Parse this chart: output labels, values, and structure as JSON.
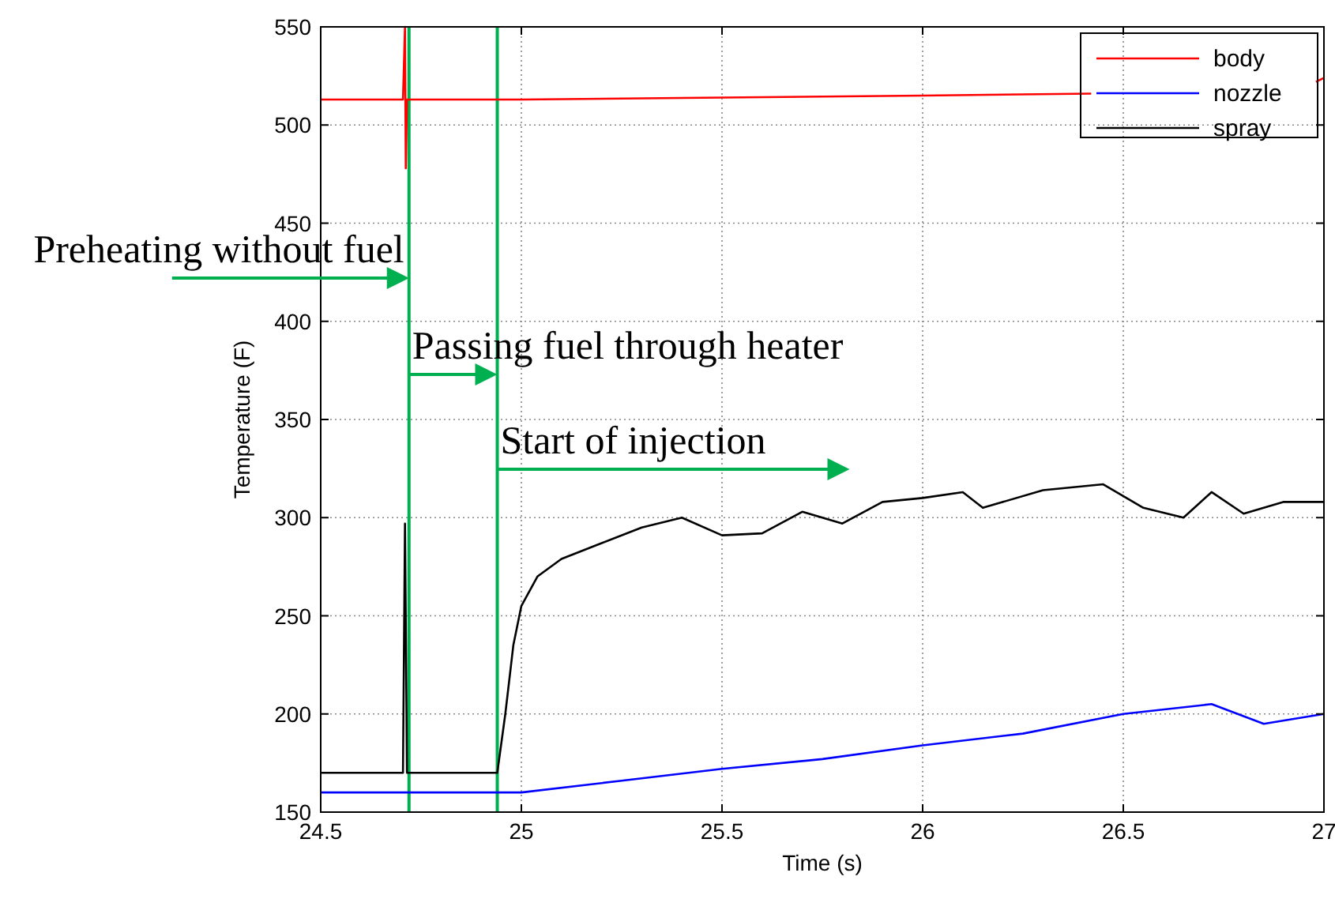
{
  "chart_data": {
    "type": "line",
    "xlabel": "Time (s)",
    "ylabel": "Temperature (F)",
    "xlim": [
      24.5,
      27
    ],
    "xticks": [
      24.5,
      25,
      25.5,
      26,
      26.5,
      27
    ],
    "ylim": [
      150,
      550
    ],
    "yticks": [
      150,
      200,
      250,
      300,
      350,
      400,
      450,
      500,
      550
    ],
    "grid": true,
    "legend": "top right",
    "line_style": "solid",
    "marker": "none",
    "series": [
      {
        "name": "body",
        "color": "#ff0000",
        "x": [
          24.5,
          24.6,
          24.705,
          24.71,
          24.712,
          24.715,
          24.8,
          25,
          25.5,
          26,
          26.42,
          26.6,
          26.98,
          27
        ],
        "values": [
          513,
          513,
          513,
          550,
          478,
          513,
          513,
          513,
          514,
          515,
          516,
          null,
          522,
          524
        ]
      },
      {
        "name": "nozzle",
        "color": "#0000ff",
        "x": [
          24.5,
          24.7,
          24.94,
          25,
          25.25,
          25.5,
          25.75,
          26,
          26.25,
          26.5,
          26.72,
          26.85,
          27
        ],
        "values": [
          160,
          160,
          160,
          160,
          166,
          172,
          177,
          184,
          190,
          200,
          205,
          195,
          200
        ]
      },
      {
        "name": "spray",
        "color": "#000000",
        "x": [
          24.5,
          24.705,
          24.71,
          24.715,
          24.94,
          24.96,
          24.98,
          25,
          25.04,
          25.1,
          25.2,
          25.3,
          25.4,
          25.5,
          25.6,
          25.7,
          25.8,
          25.9,
          26,
          26.1,
          26.15,
          26.3,
          26.45,
          26.55,
          26.65,
          26.72,
          26.8,
          26.9,
          27
        ],
        "values": [
          170,
          170,
          297,
          170,
          170,
          200,
          235,
          255,
          270,
          279,
          287,
          295,
          300,
          291,
          292,
          303,
          297,
          308,
          310,
          313,
          305,
          314,
          317,
          305,
          300,
          313,
          302,
          308,
          308
        ]
      }
    ],
    "ref_lines": [
      {
        "axis": "x",
        "value": 24.72,
        "color": "#00b050"
      },
      {
        "axis": "x",
        "value": 24.94,
        "color": "#00b050"
      }
    ],
    "annotations": [
      "Preheating without fuel",
      "Passing fuel through heater",
      "Start of injection"
    ]
  }
}
